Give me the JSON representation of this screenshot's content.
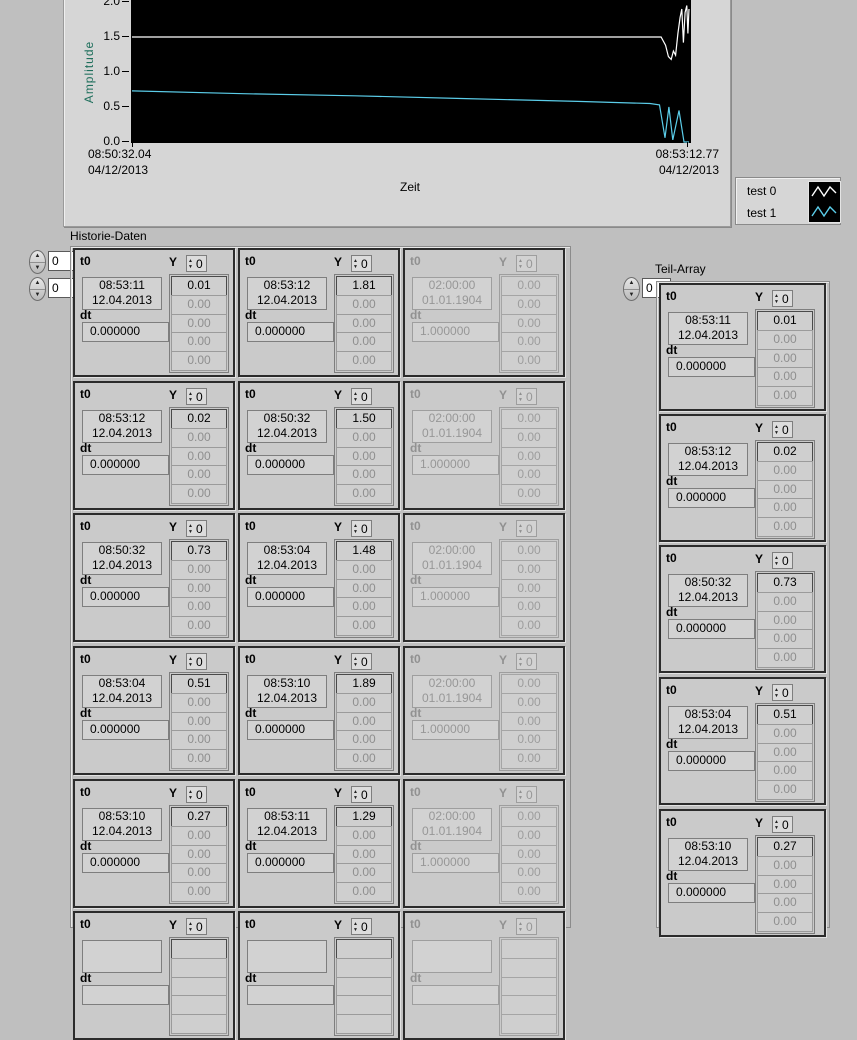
{
  "chart": {
    "ylabel": "Amplitude",
    "xlabel": "Zeit",
    "y_tick_labels": [
      "2.0",
      "1.5",
      "1.0",
      "0.5",
      "0.0"
    ],
    "x_start": {
      "time": "08:50:32.04",
      "date": "04/12/2013"
    },
    "x_end": {
      "time": "08:53:12.77",
      "date": "04/12/2013"
    },
    "legend": [
      {
        "label": "test 0",
        "color": "#ffffff"
      },
      {
        "label": "test 1",
        "color": "#5bcde9"
      }
    ],
    "chart_data": {
      "type": "line",
      "xlabel": "Zeit",
      "ylabel": "Amplitude",
      "x_range": [
        "08:50:32.04 04/12/2013",
        "08:53:12.77 04/12/2013"
      ],
      "ylim": [
        0.0,
        2.0
      ],
      "y_ticks": [
        0.0,
        0.5,
        1.0,
        1.5,
        2.0
      ],
      "plot_background": "#000000",
      "grid": false,
      "legend_position": "bottom-right",
      "series": [
        {
          "name": "test 0",
          "color": "#ffffff",
          "x": [
            0,
            0.95,
            0.958,
            0.963,
            0.968,
            0.972,
            0.976,
            0.98,
            0.984,
            0.987,
            0.99,
            0.993,
            0.996,
            0.998,
            1.0
          ],
          "y": [
            1.5,
            1.5,
            1.38,
            1.22,
            1.18,
            1.3,
            1.24,
            1.55,
            1.78,
            1.9,
            1.42,
            1.85,
            1.95,
            1.55,
            1.9
          ]
        },
        {
          "name": "test 1",
          "color": "#5bcde9",
          "x": [
            0,
            0.2,
            0.4,
            0.6,
            0.8,
            0.93,
            0.947,
            0.957,
            0.964,
            0.971,
            0.982,
            0.991,
            1.0
          ],
          "y": [
            0.73,
            0.69,
            0.66,
            0.62,
            0.58,
            0.55,
            0.53,
            0.06,
            0.5,
            0.03,
            0.45,
            0.0,
            0.0
          ]
        }
      ]
    }
  },
  "cluster_labels": {
    "t0": "t0",
    "dt": "dt",
    "y": "Y"
  },
  "historie": {
    "title": "Historie-Daten",
    "index_values": [
      "0",
      "0"
    ],
    "grid": [
      [
        {
          "t0_time": "08:53:11",
          "t0_date": "12.04.2013",
          "dt": "0.000000",
          "y_index": "0",
          "y_values": [
            "0.01",
            "0.00",
            "0.00",
            "0.00",
            "0.00"
          ],
          "disabled": false
        },
        {
          "t0_time": "08:53:12",
          "t0_date": "12.04.2013",
          "dt": "0.000000",
          "y_index": "0",
          "y_values": [
            "1.81",
            "0.00",
            "0.00",
            "0.00",
            "0.00"
          ],
          "disabled": false
        },
        {
          "t0_time": "02:00:00",
          "t0_date": "01.01.1904",
          "dt": "1.000000",
          "y_index": "0",
          "y_values": [
            "0.00",
            "0.00",
            "0.00",
            "0.00",
            "0.00"
          ],
          "disabled": true
        }
      ],
      [
        {
          "t0_time": "08:53:12",
          "t0_date": "12.04.2013",
          "dt": "0.000000",
          "y_index": "0",
          "y_values": [
            "0.02",
            "0.00",
            "0.00",
            "0.00",
            "0.00"
          ],
          "disabled": false
        },
        {
          "t0_time": "08:50:32",
          "t0_date": "12.04.2013",
          "dt": "0.000000",
          "y_index": "0",
          "y_values": [
            "1.50",
            "0.00",
            "0.00",
            "0.00",
            "0.00"
          ],
          "disabled": false
        },
        {
          "t0_time": "02:00:00",
          "t0_date": "01.01.1904",
          "dt": "1.000000",
          "y_index": "0",
          "y_values": [
            "0.00",
            "0.00",
            "0.00",
            "0.00",
            "0.00"
          ],
          "disabled": true
        }
      ],
      [
        {
          "t0_time": "08:50:32",
          "t0_date": "12.04.2013",
          "dt": "0.000000",
          "y_index": "0",
          "y_values": [
            "0.73",
            "0.00",
            "0.00",
            "0.00",
            "0.00"
          ],
          "disabled": false
        },
        {
          "t0_time": "08:53:04",
          "t0_date": "12.04.2013",
          "dt": "0.000000",
          "y_index": "0",
          "y_values": [
            "1.48",
            "0.00",
            "0.00",
            "0.00",
            "0.00"
          ],
          "disabled": false
        },
        {
          "t0_time": "02:00:00",
          "t0_date": "01.01.1904",
          "dt": "1.000000",
          "y_index": "0",
          "y_values": [
            "0.00",
            "0.00",
            "0.00",
            "0.00",
            "0.00"
          ],
          "disabled": true
        }
      ],
      [
        {
          "t0_time": "08:53:04",
          "t0_date": "12.04.2013",
          "dt": "0.000000",
          "y_index": "0",
          "y_values": [
            "0.51",
            "0.00",
            "0.00",
            "0.00",
            "0.00"
          ],
          "disabled": false
        },
        {
          "t0_time": "08:53:10",
          "t0_date": "12.04.2013",
          "dt": "0.000000",
          "y_index": "0",
          "y_values": [
            "1.89",
            "0.00",
            "0.00",
            "0.00",
            "0.00"
          ],
          "disabled": false
        },
        {
          "t0_time": "02:00:00",
          "t0_date": "01.01.1904",
          "dt": "1.000000",
          "y_index": "0",
          "y_values": [
            "0.00",
            "0.00",
            "0.00",
            "0.00",
            "0.00"
          ],
          "disabled": true
        }
      ],
      [
        {
          "t0_time": "08:53:10",
          "t0_date": "12.04.2013",
          "dt": "0.000000",
          "y_index": "0",
          "y_values": [
            "0.27",
            "0.00",
            "0.00",
            "0.00",
            "0.00"
          ],
          "disabled": false
        },
        {
          "t0_time": "08:53:11",
          "t0_date": "12.04.2013",
          "dt": "0.000000",
          "y_index": "0",
          "y_values": [
            "1.29",
            "0.00",
            "0.00",
            "0.00",
            "0.00"
          ],
          "disabled": false
        },
        {
          "t0_time": "02:00:00",
          "t0_date": "01.01.1904",
          "dt": "1.000000",
          "y_index": "0",
          "y_values": [
            "0.00",
            "0.00",
            "0.00",
            "0.00",
            "0.00"
          ],
          "disabled": true
        }
      ],
      [
        {
          "t0_time": "",
          "t0_date": "",
          "dt": "",
          "y_index": "0",
          "y_values": [
            "",
            "",
            "",
            "",
            ""
          ],
          "disabled": false
        },
        {
          "t0_time": "",
          "t0_date": "",
          "dt": "",
          "y_index": "0",
          "y_values": [
            "",
            "",
            "",
            "",
            ""
          ],
          "disabled": false
        },
        {
          "t0_time": "",
          "t0_date": "",
          "dt": "",
          "y_index": "0",
          "y_values": [
            "",
            "",
            "",
            "",
            ""
          ],
          "disabled": true
        }
      ]
    ]
  },
  "teil_array": {
    "title": "Teil-Array",
    "index_values": [
      "0"
    ],
    "clusters": [
      {
        "t0_time": "08:53:11",
        "t0_date": "12.04.2013",
        "dt": "0.000000",
        "y_index": "0",
        "y_values": [
          "0.01",
          "0.00",
          "0.00",
          "0.00",
          "0.00"
        ],
        "disabled": false
      },
      {
        "t0_time": "08:53:12",
        "t0_date": "12.04.2013",
        "dt": "0.000000",
        "y_index": "0",
        "y_values": [
          "0.02",
          "0.00",
          "0.00",
          "0.00",
          "0.00"
        ],
        "disabled": false
      },
      {
        "t0_time": "08:50:32",
        "t0_date": "12.04.2013",
        "dt": "0.000000",
        "y_index": "0",
        "y_values": [
          "0.73",
          "0.00",
          "0.00",
          "0.00",
          "0.00"
        ],
        "disabled": false
      },
      {
        "t0_time": "08:53:04",
        "t0_date": "12.04.2013",
        "dt": "0.000000",
        "y_index": "0",
        "y_values": [
          "0.51",
          "0.00",
          "0.00",
          "0.00",
          "0.00"
        ],
        "disabled": false
      },
      {
        "t0_time": "08:53:10",
        "t0_date": "12.04.2013",
        "dt": "0.000000",
        "y_index": "0",
        "y_values": [
          "0.27",
          "0.00",
          "0.00",
          "0.00",
          "0.00"
        ],
        "disabled": false
      }
    ]
  }
}
